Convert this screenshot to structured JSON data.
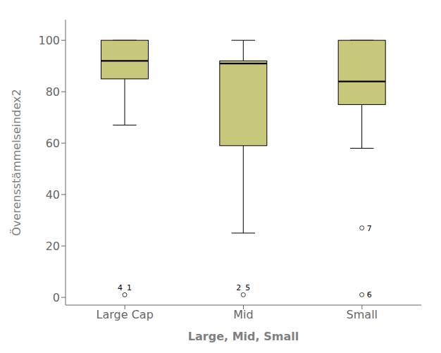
{
  "chart_data": {
    "type": "box",
    "xlabel": "Large, Mid, Small",
    "ylabel": "Överensstämmelseindex2",
    "categories": [
      "Large Cap",
      "Mid",
      "Small"
    ],
    "boxes": [
      {
        "q1": 85,
        "median": 92,
        "q3": 100,
        "whisker_low": 67,
        "whisker_high": 100
      },
      {
        "q1": 59,
        "median": 91,
        "q3": 92,
        "whisker_low": 25,
        "whisker_high": 100
      },
      {
        "q1": 75,
        "median": 84,
        "q3": 100,
        "whisker_low": 58,
        "whisker_high": 100
      }
    ],
    "outliers": [
      {
        "category": "Large Cap",
        "y": 1,
        "labels": [
          "4",
          "1"
        ]
      },
      {
        "category": "Mid",
        "y": 1,
        "labels": [
          "2",
          "5"
        ]
      },
      {
        "category": "Small",
        "y": 27,
        "labels": [
          "7"
        ]
      },
      {
        "category": "Small",
        "y": 1,
        "labels": [
          "6"
        ]
      }
    ],
    "color": "#c8c87a",
    "ylim": [
      -3,
      108
    ],
    "yticks": [
      0,
      20,
      40,
      60,
      80,
      100
    ],
    "grid": false
  }
}
